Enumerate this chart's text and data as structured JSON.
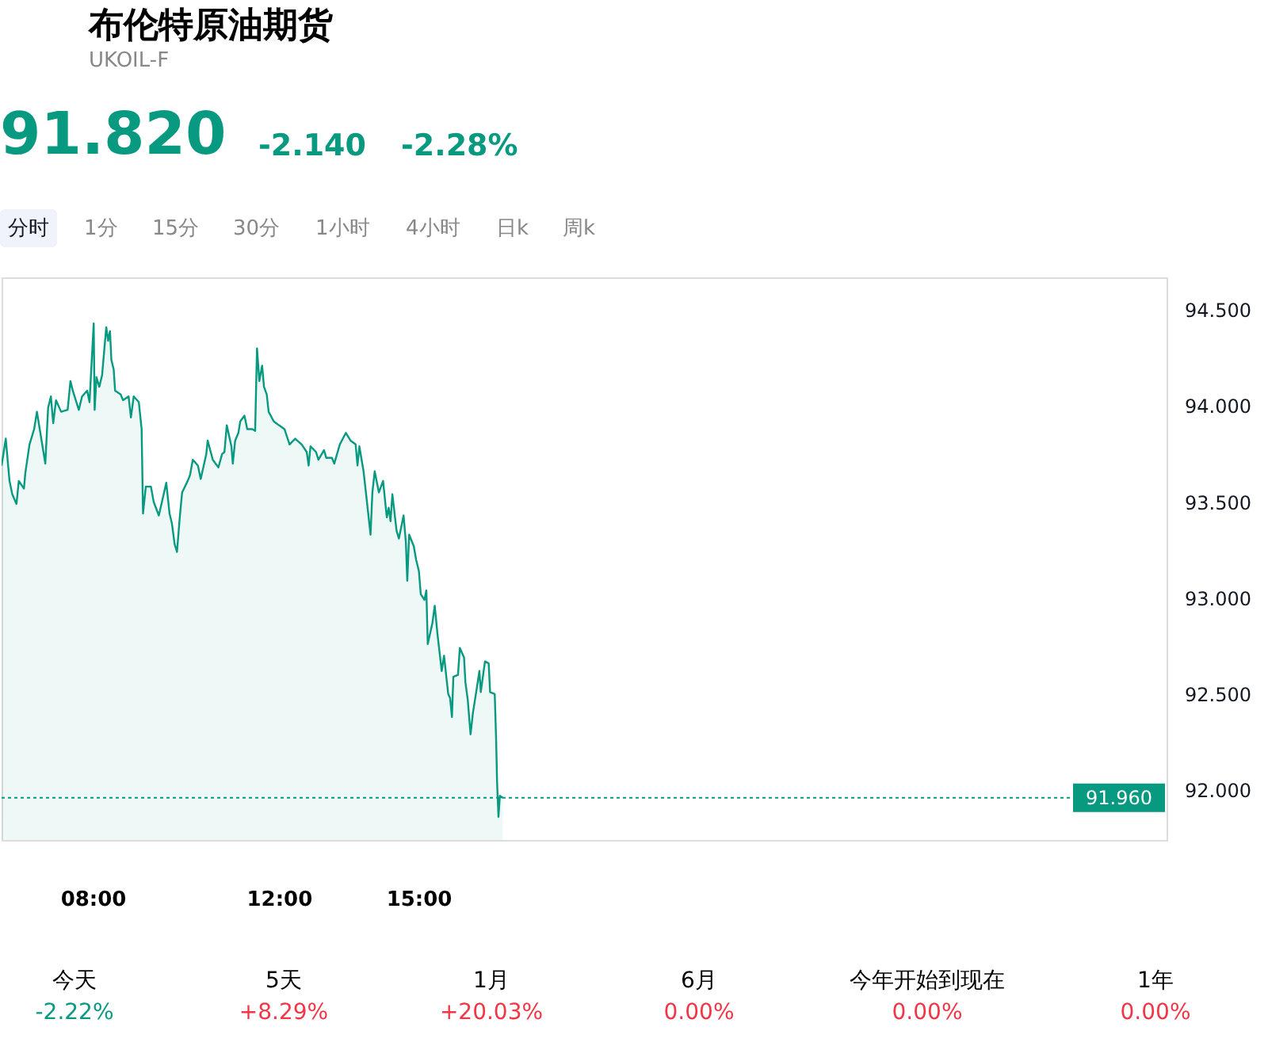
{
  "chart_data": {
    "type": "area",
    "title": "布伦特原油期货",
    "subtitle": "UKOIL-F",
    "annotations": [
      "91.820",
      "-2.140",
      "-2.28%",
      "分时",
      "1分",
      "15分",
      "30分",
      "1小时",
      "4小时",
      "日k",
      "周k",
      "今天",
      "-2.22%",
      "5天",
      "+8.29%",
      "1月",
      "+20.03%",
      "6月",
      "0.00%",
      "今年开始到现在",
      "0.00%",
      "1年",
      "0.00%"
    ],
    "x": [
      6.04,
      6.13,
      6.21,
      6.27,
      6.36,
      6.41,
      6.52,
      6.55,
      6.64,
      6.74,
      6.8,
      6.86,
      6.98,
      7.04,
      7.1,
      7.15,
      7.21,
      7.32,
      7.46,
      7.52,
      7.57,
      7.7,
      7.77,
      7.88,
      7.93,
      8.02,
      8.04,
      8.08,
      8.14,
      8.2,
      8.25,
      8.29,
      8.33,
      8.37,
      8.4,
      8.45,
      8.48,
      8.6,
      8.65,
      8.77,
      8.82,
      8.88,
      8.99,
      9.05,
      9.08,
      9.14,
      9.25,
      9.31,
      9.42,
      9.58,
      9.65,
      9.7,
      9.76,
      9.81,
      9.87,
      9.92,
      10.04,
      10.09,
      10.15,
      10.26,
      10.32,
      10.44,
      10.47,
      10.58,
      10.7,
      10.78,
      10.83,
      10.88,
      10.98,
      11.01,
      11.06,
      11.13,
      11.17,
      11.26,
      11.32,
      11.43,
      11.49,
      11.53,
      11.58,
      11.64,
      11.68,
      11.74,
      11.78,
      11.89,
      12.0,
      12.12,
      12.23,
      12.35,
      12.49,
      12.6,
      12.64,
      12.68,
      12.8,
      12.85,
      12.97,
      13.02,
      13.14,
      13.19,
      13.31,
      13.44,
      13.54,
      13.65,
      13.69,
      13.73,
      13.82,
      13.88,
      13.97,
      14.01,
      14.06,
      14.15,
      14.24,
      14.29,
      14.32,
      14.36,
      14.4,
      14.44,
      14.53,
      14.58,
      14.68,
      14.73,
      14.76,
      14.8,
      14.9,
      14.95,
      15.01,
      15.05,
      15.13,
      15.17,
      15.2,
      15.3,
      15.35,
      15.41,
      15.5,
      15.55,
      15.64,
      15.68,
      15.72,
      15.75,
      15.85,
      15.89,
      15.98,
      16.01,
      16.06,
      16.12,
      16.17,
      16.26,
      16.31,
      16.34,
      16.43,
      16.51,
      16.54,
      16.64,
      16.67,
      16.69,
      16.72,
      16.75,
      16.81
    ],
    "series": [
      {
        "color": "#089981",
        "values": [
          93.69,
          93.83,
          93.61,
          93.54,
          93.49,
          93.61,
          93.57,
          93.65,
          93.8,
          93.88,
          93.97,
          93.88,
          93.7,
          93.99,
          94.05,
          93.91,
          94.03,
          93.97,
          93.98,
          94.13,
          94.08,
          93.98,
          94.05,
          94.08,
          94.02,
          94.43,
          93.98,
          94.15,
          94.1,
          94.16,
          94.3,
          94.41,
          94.34,
          94.39,
          94.24,
          94.19,
          94.08,
          94.06,
          94.03,
          94.05,
          93.94,
          94.05,
          94.02,
          93.88,
          93.44,
          93.58,
          93.58,
          93.5,
          93.43,
          93.6,
          93.44,
          93.39,
          93.28,
          93.24,
          93.42,
          93.55,
          93.61,
          93.64,
          93.72,
          93.69,
          93.62,
          93.75,
          93.82,
          93.72,
          93.68,
          93.75,
          93.76,
          93.9,
          93.79,
          93.7,
          93.82,
          93.86,
          93.92,
          93.95,
          93.88,
          93.88,
          93.87,
          94.3,
          94.13,
          94.21,
          94.1,
          94.06,
          93.97,
          93.92,
          93.9,
          93.88,
          93.8,
          93.83,
          93.8,
          93.76,
          93.69,
          93.79,
          93.76,
          93.72,
          93.77,
          93.73,
          93.73,
          93.7,
          93.8,
          93.86,
          93.82,
          93.8,
          93.69,
          93.79,
          93.66,
          93.53,
          93.33,
          93.55,
          93.66,
          93.55,
          93.61,
          93.49,
          93.42,
          93.47,
          93.4,
          93.54,
          93.35,
          93.31,
          93.43,
          93.29,
          93.09,
          93.33,
          93.27,
          93.2,
          93.14,
          93.02,
          92.99,
          93.04,
          92.76,
          92.87,
          92.96,
          92.81,
          92.62,
          92.7,
          92.5,
          92.48,
          92.38,
          92.59,
          92.6,
          92.74,
          92.69,
          92.56,
          92.47,
          92.29,
          92.4,
          92.54,
          92.62,
          92.51,
          92.67,
          92.66,
          92.51,
          92.5,
          92.26,
          92.04,
          91.86,
          91.97,
          91.96
        ]
      }
    ],
    "xlim": [
      6.04,
      31.08
    ],
    "ylim": [
      91.74,
      94.67
    ],
    "xticks": [
      {
        "value": 8,
        "label": "08:00"
      },
      {
        "value": 12,
        "label": "12:00"
      },
      {
        "value": 15,
        "label": "15:00"
      }
    ],
    "yticks": [
      {
        "value": 92,
        "label": "92.000"
      },
      {
        "value": 92.5,
        "label": "92.500"
      },
      {
        "value": 93,
        "label": "93.000"
      },
      {
        "value": 93.5,
        "label": "93.500"
      },
      {
        "value": 94,
        "label": "94.000"
      },
      {
        "value": 94.5,
        "label": "94.500"
      }
    ],
    "ref_lines": [
      {
        "axis": "y",
        "value": 91.96,
        "label": "91.960",
        "color": "#089981",
        "line_style": "dotted"
      }
    ]
  }
}
